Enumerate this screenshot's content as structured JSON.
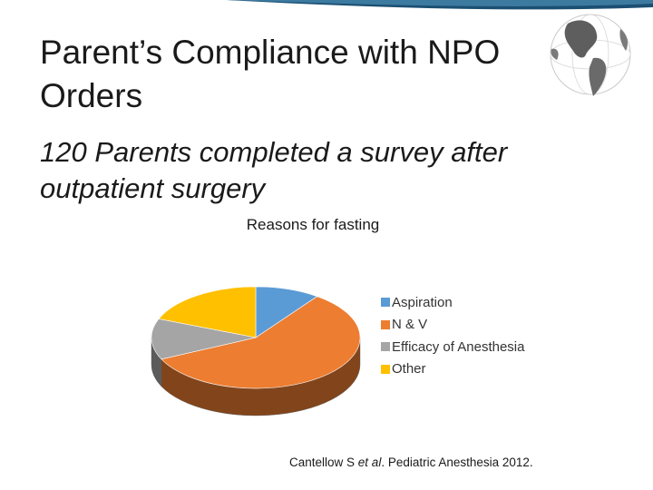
{
  "slide": {
    "title": "Parent’s Compliance with NPO Orders",
    "subtitle": "120 Parents completed a survey after outpatient surgery",
    "citation": {
      "authors": "Cantellow S ",
      "etal": "et al",
      "rest": ". Pediatric Anesthesia 2012."
    },
    "decor": {
      "banner_icon": "banner-wave",
      "globe_icon": "globe-icon"
    }
  },
  "chart_data": {
    "type": "pie",
    "title": "Reasons for fasting",
    "categories": [
      "Aspiration",
      "N & V",
      "Efficacy of Anesthesia",
      "Other"
    ],
    "values": [
      10,
      58,
      13,
      19
    ],
    "colors": [
      "#5b9bd5",
      "#ed7d31",
      "#a5a5a5",
      "#ffc000"
    ],
    "legend_position": "right",
    "style": "3d"
  }
}
